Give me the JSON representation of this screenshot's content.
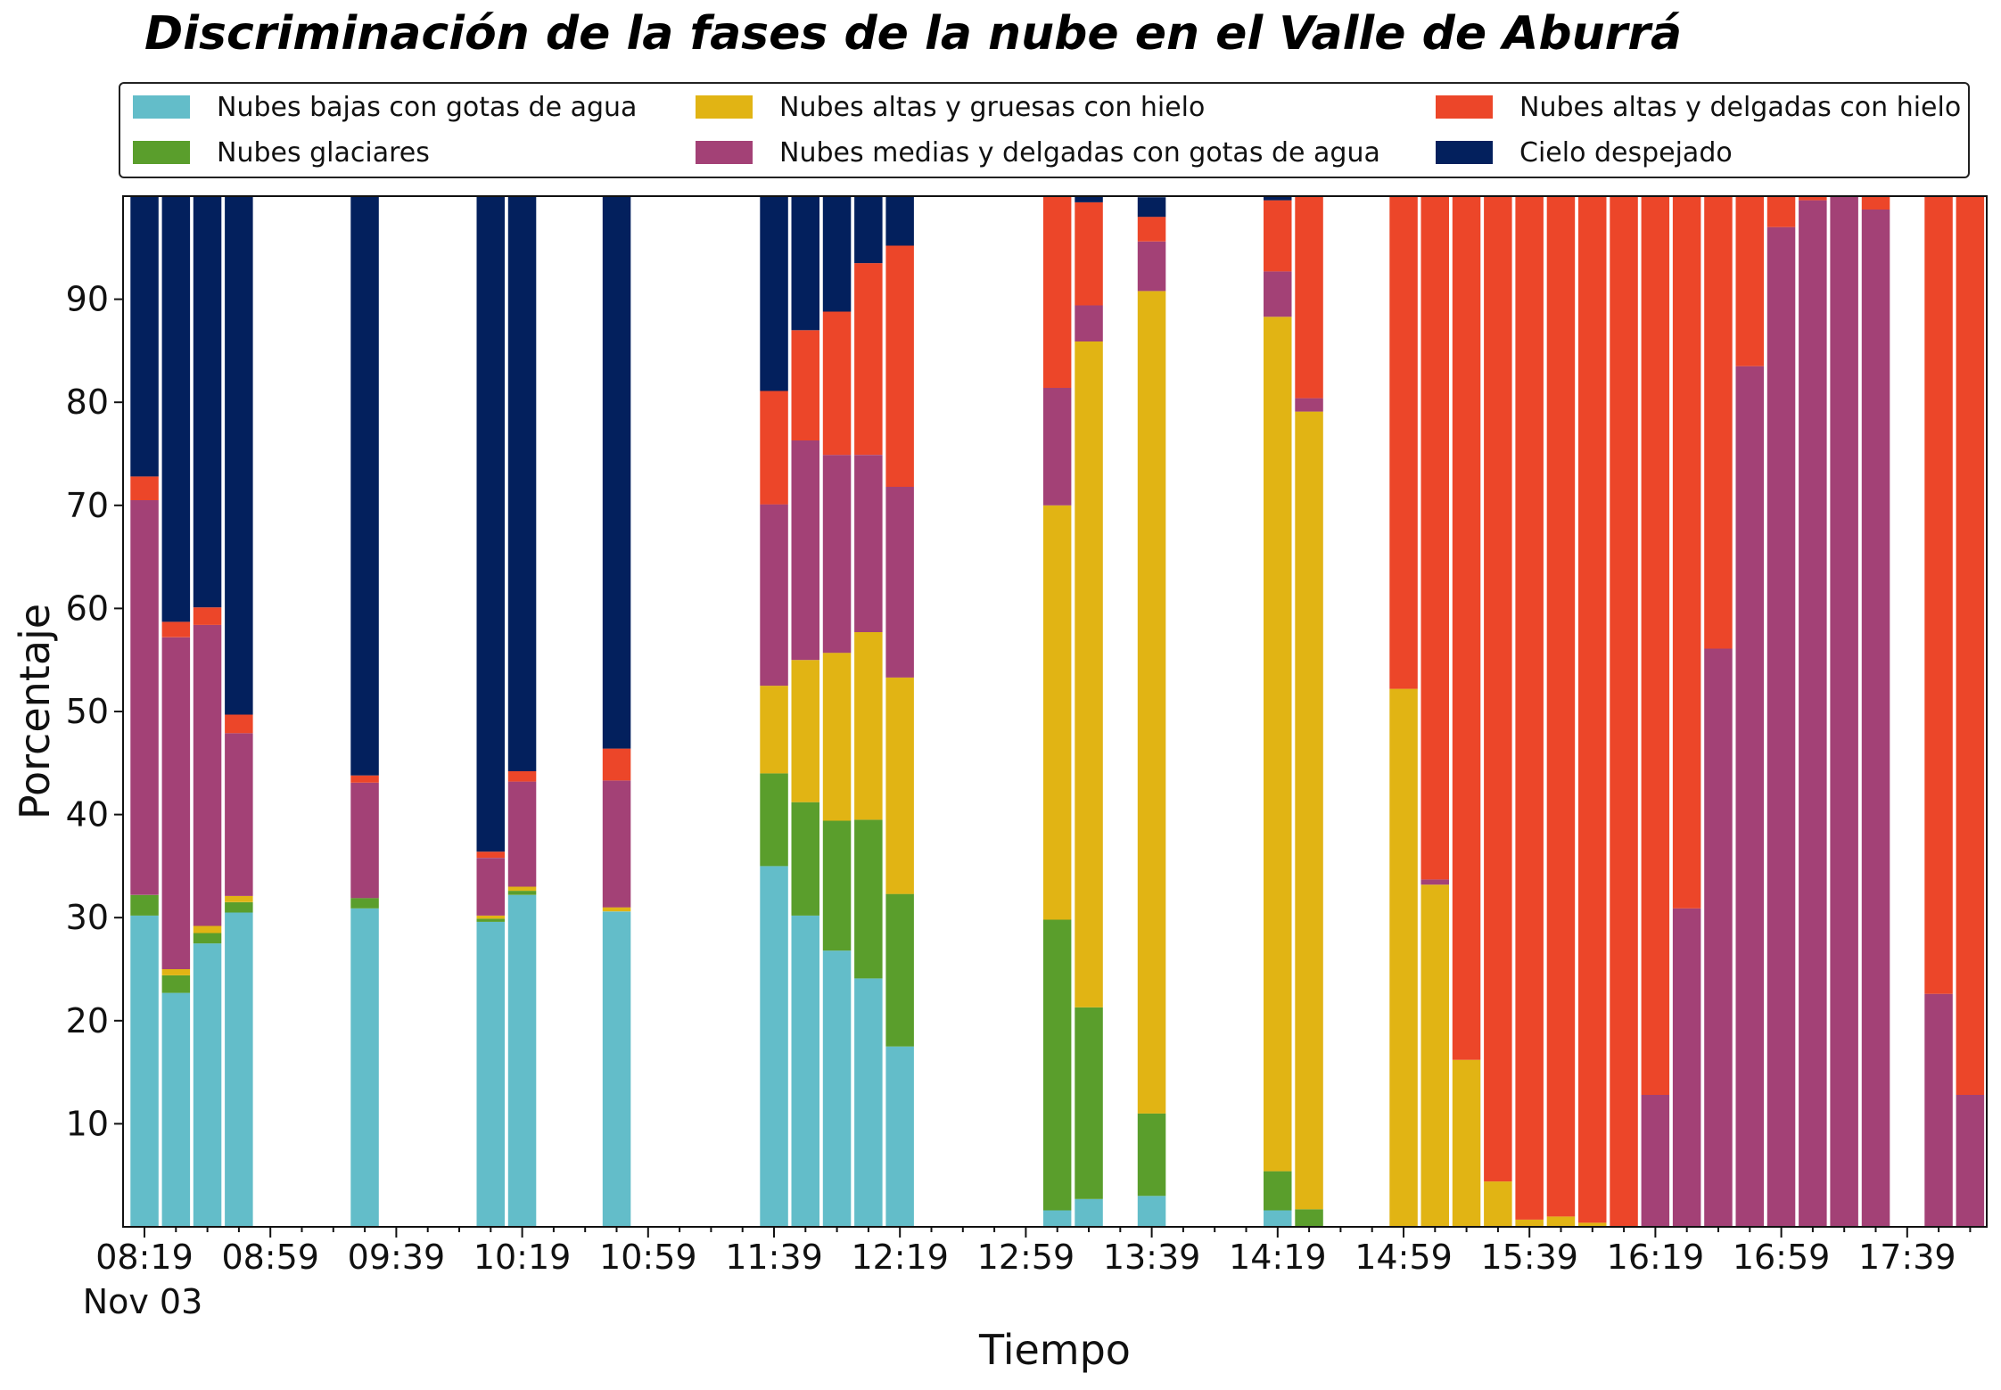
{
  "chart_data": {
    "type": "bar",
    "stacked": true,
    "title": "Discriminación de la fases de la nube en el Valle de Aburrá",
    "xlabel": "Tiempo",
    "ylabel": "Porcentaje",
    "ylim": [
      0,
      100
    ],
    "yticks": [
      10,
      20,
      30,
      40,
      50,
      60,
      70,
      80,
      90
    ],
    "x_tick_labels": [
      "08:19",
      "08:59",
      "09:39",
      "10:19",
      "10:59",
      "11:39",
      "12:19",
      "12:59",
      "13:39",
      "14:19",
      "14:59",
      "15:39",
      "16:19",
      "16:59",
      "17:39"
    ],
    "x_date_label": "Nov 03",
    "grid": false,
    "legend_position": "top",
    "slots": [
      "08:19",
      "08:29",
      "08:39",
      "08:49",
      "08:59",
      "09:09",
      "09:19",
      "09:29",
      "09:39",
      "09:49",
      "09:59",
      "10:09",
      "10:19",
      "10:29",
      "10:39",
      "10:49",
      "10:59",
      "11:09",
      "11:19",
      "11:29",
      "11:39",
      "11:49",
      "11:59",
      "12:09",
      "12:19",
      "12:29",
      "12:39",
      "12:49",
      "12:59",
      "13:09",
      "13:19",
      "13:29",
      "13:39",
      "13:49",
      "13:59",
      "14:09",
      "14:19",
      "14:29",
      "14:39",
      "14:49",
      "14:59",
      "15:09",
      "15:19",
      "15:29",
      "15:39",
      "15:49",
      "15:59",
      "16:09",
      "16:19",
      "16:29",
      "16:39",
      "16:49",
      "16:59",
      "17:09",
      "17:19",
      "17:29",
      "17:39",
      "17:49",
      "17:59"
    ],
    "series": [
      {
        "name": "Nubes bajas con gotas de agua",
        "color": "#63bdc9",
        "values": [
          30.2,
          22.7,
          27.5,
          30.5,
          0,
          0,
          0,
          30.9,
          0,
          0,
          0,
          29.6,
          32.2,
          0,
          0,
          30.6,
          0,
          0,
          0,
          0,
          35.0,
          30.2,
          26.8,
          24.1,
          17.5,
          0,
          0,
          0,
          0,
          1.6,
          2.7,
          0,
          3.0,
          0,
          0,
          0,
          1.6,
          0,
          0,
          0,
          0,
          0,
          0,
          0,
          0,
          0,
          0,
          0,
          0,
          0,
          0,
          0,
          0,
          0,
          0,
          0,
          0,
          0,
          0
        ]
      },
      {
        "name": "Nubes glaciares",
        "color": "#5a9e2c",
        "values": [
          2.0,
          1.7,
          1.0,
          1.0,
          0,
          0,
          0,
          1.0,
          0,
          0,
          0,
          0.3,
          0.4,
          0,
          0,
          0,
          0,
          0,
          0,
          0,
          9.0,
          11.0,
          12.6,
          15.4,
          14.8,
          0,
          0,
          0,
          0,
          28.2,
          18.6,
          0,
          8.0,
          0,
          0,
          0,
          3.8,
          1.7,
          0,
          0,
          0,
          0,
          0,
          0,
          0,
          0,
          0,
          0,
          0,
          0,
          0,
          0,
          0,
          0,
          0,
          0,
          0,
          0,
          0
        ]
      },
      {
        "name": "Nubes altas y gruesas con hielo",
        "color": "#e1b414",
        "values": [
          0,
          0.6,
          0.7,
          0.6,
          0,
          0,
          0,
          0,
          0,
          0,
          0,
          0.3,
          0.4,
          0,
          0,
          0.4,
          0,
          0,
          0,
          0,
          8.5,
          13.8,
          16.3,
          18.2,
          21.0,
          0,
          0,
          0,
          0,
          40.2,
          64.6,
          0,
          79.8,
          0,
          0,
          0,
          82.9,
          77.4,
          0,
          0,
          52.2,
          33.2,
          16.2,
          4.4,
          0.7,
          1.0,
          0.4,
          0,
          0,
          0,
          0,
          0,
          0,
          0,
          0,
          0,
          0,
          0,
          0
        ]
      },
      {
        "name": "Nubes medias y delgadas con gotas de agua",
        "color": "#a34176",
        "values": [
          38.3,
          32.2,
          29.2,
          15.8,
          0,
          0,
          0,
          11.2,
          0,
          0,
          0,
          5.6,
          10.2,
          0,
          0,
          12.3,
          0,
          0,
          0,
          0,
          17.6,
          21.3,
          19.2,
          17.2,
          18.5,
          0,
          0,
          0,
          0,
          11.4,
          3.5,
          0,
          4.8,
          0,
          0,
          0,
          4.4,
          1.3,
          0,
          0,
          0,
          0.5,
          0,
          0,
          0,
          0,
          0,
          0,
          12.8,
          30.9,
          56.1,
          83.5,
          97.0,
          99.6,
          100,
          98.7,
          0,
          22.6,
          12.8
        ]
      },
      {
        "name": "Nubes altas y delgadas con hielo",
        "color": "#ec4629",
        "values": [
          2.3,
          1.5,
          1.7,
          1.8,
          0,
          0,
          0,
          0.7,
          0,
          0,
          0,
          0.6,
          1.0,
          0,
          0,
          3.1,
          0,
          0,
          0,
          0,
          11.0,
          10.7,
          13.9,
          18.6,
          23.4,
          0,
          0,
          0,
          0,
          18.6,
          10.0,
          0,
          2.4,
          0,
          0,
          0,
          6.9,
          19.6,
          0,
          0,
          47.8,
          66.3,
          83.8,
          95.6,
          99.3,
          99.0,
          99.6,
          100,
          87.2,
          69.1,
          43.9,
          16.5,
          3.0,
          0.4,
          0,
          1.3,
          0,
          77.4,
          87.2
        ]
      },
      {
        "name": "Cielo despejado",
        "color": "#03205d",
        "values": [
          27.2,
          41.3,
          39.9,
          50.3,
          0,
          0,
          0,
          56.2,
          0,
          0,
          0,
          63.6,
          55.8,
          0,
          0,
          53.6,
          0,
          0,
          0,
          0,
          18.9,
          13.0,
          11.2,
          6.5,
          4.8,
          0,
          0,
          0,
          0,
          0,
          0.6,
          0,
          1.9,
          0,
          0,
          0,
          0.4,
          0,
          0,
          0,
          0,
          0,
          0,
          0,
          0,
          0,
          0,
          0,
          0,
          0,
          0,
          0,
          0,
          0,
          0,
          0,
          0,
          0,
          0
        ]
      }
    ]
  }
}
